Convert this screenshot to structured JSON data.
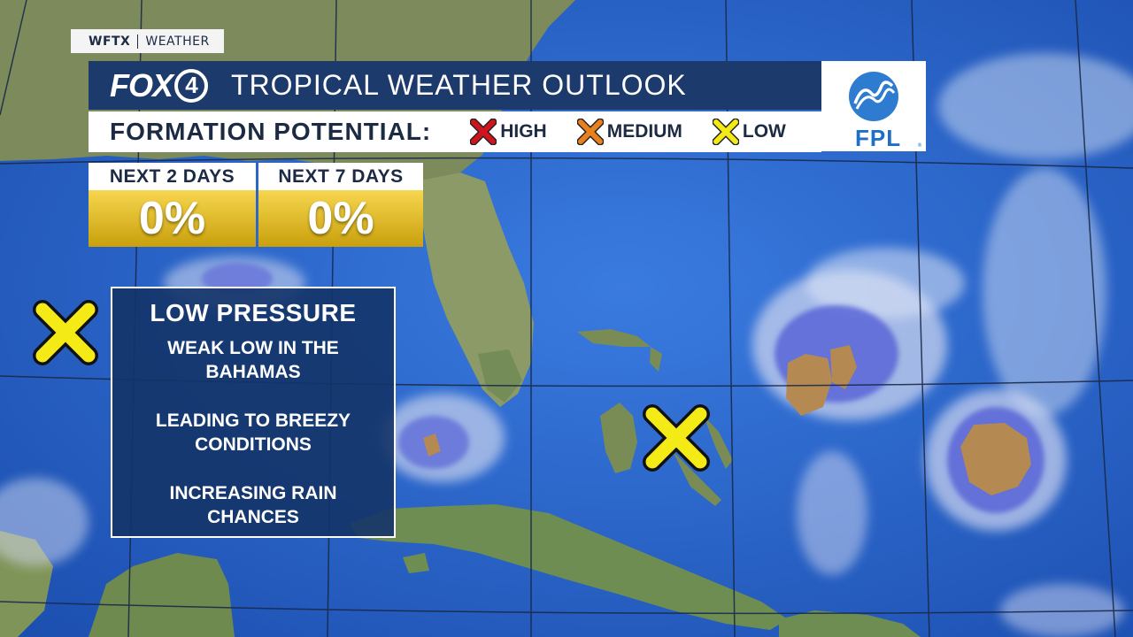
{
  "brand": {
    "station": "WFTX",
    "section": "WEATHER"
  },
  "header": {
    "logo": {
      "fox": "FOX",
      "number": "4"
    },
    "title": "TROPICAL WEATHER OUTLOOK"
  },
  "sponsor": {
    "name": "FPL"
  },
  "formation": {
    "label": "FORMATION POTENTIAL:",
    "legend": [
      {
        "label": "HIGH",
        "color": "#d0141e",
        "icon": "red-x-icon"
      },
      {
        "label": "MEDIUM",
        "color": "#e8811d",
        "icon": "orange-x-icon"
      },
      {
        "label": "LOW",
        "color": "#f3ea16",
        "icon": "yellow-x-icon"
      }
    ]
  },
  "chances": [
    {
      "period": "NEXT 2 DAYS",
      "value": "0%"
    },
    {
      "period": "NEXT 7 DAYS",
      "value": "0%"
    }
  ],
  "system": {
    "title": "LOW PRESSURE",
    "lines": [
      "WEAK LOW IN THE BAHAMAS",
      "LEADING TO BREEZY CONDITIONS",
      "INCREASING RAIN CHANCES"
    ],
    "potential": "LOW",
    "marker_color": "#f3ea16"
  },
  "colors": {
    "ocean": "#1f56b8",
    "land": "#6f8a5a",
    "header": "#1c3a6b",
    "bar_gold": "#e0bb2a"
  }
}
